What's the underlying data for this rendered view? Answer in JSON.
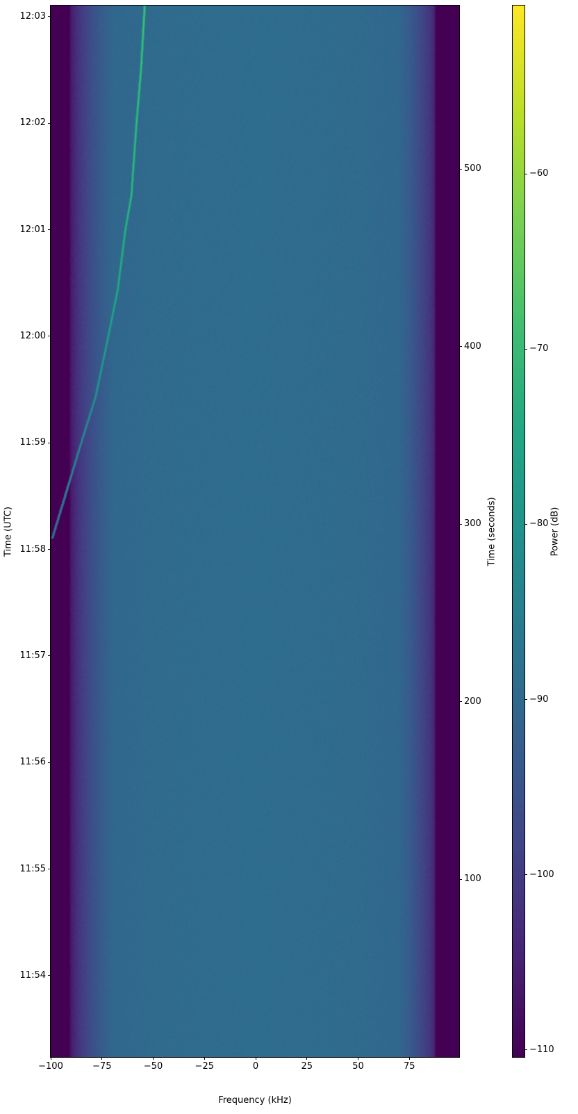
{
  "chart_data": {
    "type": "heatmap",
    "xlabel": "Frequency (kHz)",
    "ylabel": "Time (UTC)",
    "ylabel_right": "Time (seconds)",
    "colorbar_label": "Power (dB)",
    "colormap": "viridis",
    "xlim": [
      -100,
      99.3
    ],
    "ylim_seconds": [
      0,
      592
    ],
    "clim": [
      -110.4,
      -50.4
    ],
    "x_ticks": [
      {
        "value": -100,
        "label": "−100"
      },
      {
        "value": -75,
        "label": "−75"
      },
      {
        "value": -50,
        "label": "−50"
      },
      {
        "value": -25,
        "label": "−25"
      },
      {
        "value": 0,
        "label": "0"
      },
      {
        "value": 25,
        "label": "25"
      },
      {
        "value": 50,
        "label": "50"
      },
      {
        "value": 75,
        "label": "75"
      }
    ],
    "y_ticks_utc": [
      {
        "seconds": 45.8,
        "label": "11:54"
      },
      {
        "seconds": 105.8,
        "label": "11:55"
      },
      {
        "seconds": 165.8,
        "label": "11:56"
      },
      {
        "seconds": 225.8,
        "label": "11:57"
      },
      {
        "seconds": 285.8,
        "label": "11:58"
      },
      {
        "seconds": 345.8,
        "label": "11:59"
      },
      {
        "seconds": 405.8,
        "label": "12:00"
      },
      {
        "seconds": 465.8,
        "label": "12:01"
      },
      {
        "seconds": 525.8,
        "label": "12:02"
      },
      {
        "seconds": 585.8,
        "label": "12:03"
      }
    ],
    "y_ticks_seconds": [
      {
        "value": 100,
        "label": "100"
      },
      {
        "value": 200,
        "label": "200"
      },
      {
        "value": 300,
        "label": "300"
      },
      {
        "value": 400,
        "label": "400"
      },
      {
        "value": 500,
        "label": "500"
      }
    ],
    "colorbar_ticks": [
      {
        "value": -60,
        "label": "−60"
      },
      {
        "value": -70,
        "label": "−70"
      },
      {
        "value": -80,
        "label": "−80"
      },
      {
        "value": -90,
        "label": "−90"
      },
      {
        "value": -100,
        "label": "−100"
      },
      {
        "value": -110,
        "label": "−110"
      }
    ],
    "band_profile": {
      "frequency_khz": [
        -100,
        -91,
        -90,
        -87,
        -85,
        -80,
        -75,
        -70,
        -50,
        0,
        50,
        70,
        75,
        80,
        85,
        87,
        88,
        99.3
      ],
      "power_db": [
        -110.4,
        -110.4,
        -106,
        -102,
        -100,
        -96,
        -93,
        -90.5,
        -89.5,
        -89,
        -89.5,
        -90.5,
        -93,
        -97,
        -101,
        -104,
        -110.4,
        -110.4
      ]
    },
    "signal_track": {
      "seconds": [
        292,
        346,
        371.5,
        406,
        431.8,
        466,
        485,
        526,
        556,
        592
      ],
      "frequency_khz": [
        -99.4,
        -85.2,
        -78.3,
        -72.0,
        -67.5,
        -63.7,
        -60.8,
        -58.3,
        -56.1,
        -54.3
      ],
      "power_db": [
        -86,
        -80,
        -77,
        -74,
        -72,
        -70,
        -69,
        -68,
        -67,
        -66
      ]
    }
  }
}
